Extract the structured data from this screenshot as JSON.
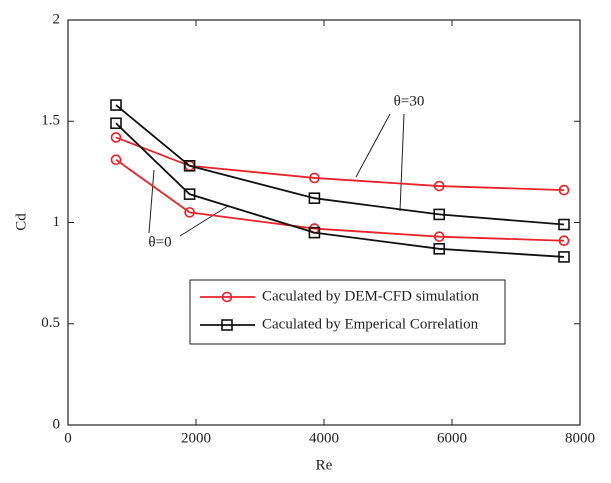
{
  "chart_data": {
    "type": "line",
    "xlabel": "Re",
    "ylabel": "Cd",
    "x": [
      750,
      1900,
      3850,
      5800,
      7750
    ],
    "xlim": [
      0,
      8000
    ],
    "xticks": [
      0,
      2000,
      4000,
      6000,
      8000
    ],
    "ylim": [
      0,
      2
    ],
    "yticks": [
      0,
      0.5,
      1,
      1.5,
      2
    ],
    "series": [
      {
        "name": "Caculated by DEM-CFD simulation",
        "color": "#e8232a",
        "marker": "circle",
        "curves": [
          [
            1.42,
            1.28,
            1.22,
            1.18,
            1.16
          ],
          [
            1.31,
            1.05,
            0.97,
            0.93,
            0.91
          ]
        ]
      },
      {
        "name": "Caculated by Emperical Correlation",
        "color": "#111111",
        "marker": "square",
        "curves": [
          [
            1.58,
            1.28,
            1.12,
            1.04,
            0.99
          ],
          [
            1.49,
            1.14,
            0.95,
            0.87,
            0.83
          ]
        ]
      }
    ],
    "annotations": [
      "θ=30",
      "θ=0"
    ]
  }
}
